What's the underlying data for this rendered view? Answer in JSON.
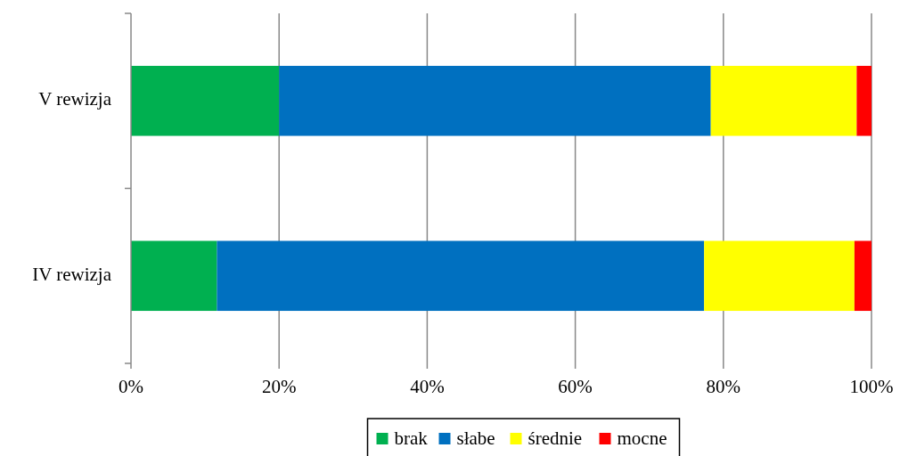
{
  "chart_data": {
    "type": "bar",
    "orientation": "horizontal",
    "stacked": true,
    "categories": [
      "V rewizja",
      "IV rewizja"
    ],
    "series": [
      {
        "name": "brak",
        "color": "#00b050",
        "values": [
          20,
          11.6
        ]
      },
      {
        "name": "słabe",
        "color": "#0070c0",
        "values": [
          58.3,
          65.8
        ]
      },
      {
        "name": "średnie",
        "color": "#ffff00",
        "values": [
          19.7,
          20.3
        ]
      },
      {
        "name": "mocne",
        "color": "#ff0000",
        "values": [
          2,
          2.3
        ]
      }
    ],
    "xlim": [
      0,
      100
    ],
    "xticks": [
      {
        "value": 0,
        "label": "0%"
      },
      {
        "value": 20,
        "label": "20%"
      },
      {
        "value": 40,
        "label": "40%"
      },
      {
        "value": 60,
        "label": "60%"
      },
      {
        "value": 80,
        "label": "80%"
      },
      {
        "value": 100,
        "label": "100%"
      }
    ],
    "grid": "x",
    "legend": "bottom"
  }
}
